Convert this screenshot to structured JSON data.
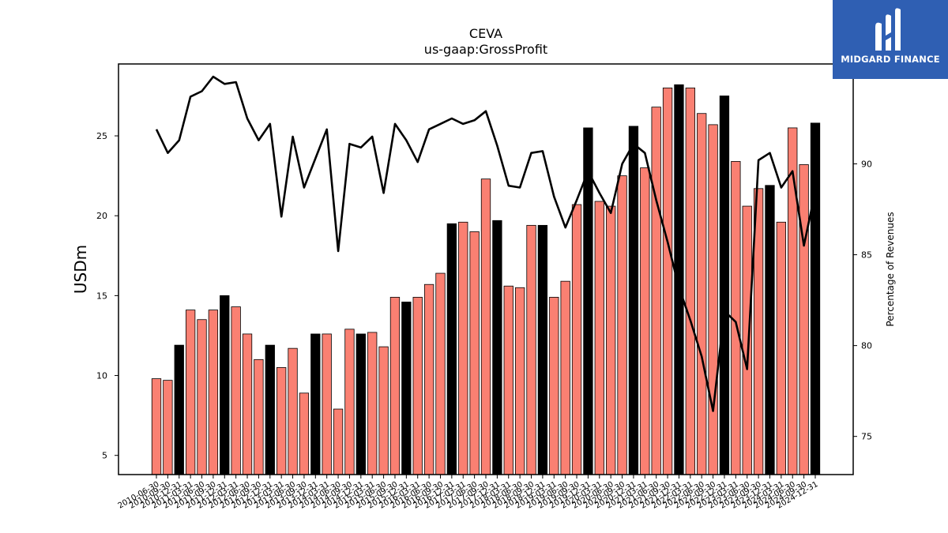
{
  "chart_data": {
    "type": "bar",
    "title": "CEVA",
    "subtitle": "us-gaap:GrossProfit",
    "ylabel": "USDm",
    "y2label": "Percentage of Revenues",
    "ylim": [
      3.8,
      29.5
    ],
    "y2lim": [
      72.9,
      95.5
    ],
    "yticks": [
      5,
      10,
      15,
      20,
      25
    ],
    "y2ticks": [
      75,
      80,
      85,
      90
    ],
    "colors": {
      "quarter": "#fa8072",
      "annual": "#000000",
      "line": "#000000"
    },
    "categories": [
      "2010-06-30",
      "2010-09-30",
      "2010-12-31",
      "2011-03-31",
      "2011-06-30",
      "2011-09-30",
      "2011-12-31",
      "2012-03-31",
      "2012-06-30",
      "2012-09-30",
      "2012-12-31",
      "2013-03-31",
      "2013-06-30",
      "2013-09-30",
      "2013-12-31",
      "2014-03-31",
      "2014-06-30",
      "2014-09-30",
      "2014-12-31",
      "2015-03-31",
      "2015-06-30",
      "2015-09-30",
      "2015-12-31",
      "2016-03-31",
      "2016-06-30",
      "2016-09-30",
      "2016-12-31",
      "2017-03-31",
      "2017-06-30",
      "2017-09-30",
      "2017-12-31",
      "2018-03-31",
      "2018-06-30",
      "2018-09-30",
      "2018-12-31",
      "2019-03-31",
      "2019-06-30",
      "2019-09-30",
      "2019-12-31",
      "2020-03-31",
      "2020-06-30",
      "2020-09-30",
      "2020-12-31",
      "2021-03-31",
      "2021-06-30",
      "2021-09-30",
      "2021-12-31",
      "2022-03-31",
      "2022-06-30",
      "2022-09-30",
      "2022-12-31",
      "2023-03-31",
      "2023-06-30",
      "2023-09-30",
      "2023-12-31",
      "2024-03-31",
      "2024-06-30",
      "2024-09-30",
      "2024-12-31"
    ],
    "bar_values": [
      9.8,
      9.7,
      11.9,
      14.1,
      13.5,
      14.1,
      15.0,
      14.3,
      12.6,
      11.0,
      11.9,
      10.5,
      11.7,
      8.9,
      12.6,
      12.6,
      7.9,
      12.9,
      12.6,
      12.7,
      11.8,
      14.9,
      14.6,
      14.9,
      15.7,
      16.4,
      19.5,
      19.6,
      19.0,
      22.3,
      19.7,
      15.6,
      15.5,
      19.4,
      19.4,
      14.9,
      15.9,
      20.7,
      25.5,
      20.9,
      20.6,
      22.5,
      25.6,
      23.0,
      26.8,
      28.0,
      28.2,
      28.0,
      26.4,
      25.7,
      27.5,
      23.4,
      20.6,
      21.7,
      21.9,
      19.6,
      25.5,
      23.2,
      25.8
    ],
    "bar_is_annual": [
      0,
      0,
      1,
      0,
      0,
      0,
      1,
      0,
      0,
      0,
      1,
      0,
      0,
      0,
      1,
      0,
      0,
      0,
      1,
      0,
      0,
      0,
      1,
      0,
      0,
      0,
      1,
      0,
      0,
      0,
      1,
      0,
      0,
      0,
      1,
      0,
      0,
      0,
      1,
      0,
      0,
      0,
      1,
      0,
      0,
      0,
      1,
      0,
      0,
      0,
      1,
      0,
      0,
      0,
      1,
      0,
      0,
      0,
      1
    ],
    "line_values": [
      91.9,
      90.6,
      91.3,
      93.7,
      94.0,
      94.8,
      94.4,
      94.5,
      92.5,
      91.3,
      92.2,
      87.1,
      91.5,
      88.7,
      90.3,
      91.9,
      85.2,
      91.1,
      90.9,
      91.5,
      88.4,
      92.2,
      91.3,
      90.1,
      91.9,
      92.2,
      92.5,
      92.2,
      92.4,
      92.9,
      91.0,
      88.8,
      88.7,
      90.6,
      90.7,
      88.2,
      86.5,
      88.0,
      89.6,
      88.4,
      87.3,
      90.0,
      91.1,
      90.6,
      88.0,
      85.7,
      83.2,
      81.4,
      79.4,
      76.4,
      81.9,
      81.3,
      78.7,
      90.2,
      90.6,
      88.7,
      89.6,
      85.5,
      88.5
    ]
  },
  "logo": {
    "text": "MIDGARD FINANCE"
  }
}
